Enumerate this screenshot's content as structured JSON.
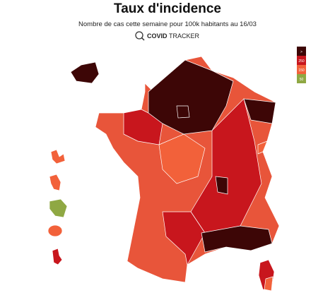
{
  "title": "Taux d'incidence",
  "subtitle": "Nombre de cas cette semaine pour 100k habitants au 16/03",
  "brand": {
    "bold": "COVID",
    "light": "TRACKER"
  },
  "legend": [
    {
      "label": ">",
      "color": "#3d0606"
    },
    {
      "label": "250",
      "color": "#c8161d"
    },
    {
      "label": "150",
      "color": "#f2613a"
    },
    {
      "label": "50",
      "color": "#8fa843"
    }
  ]
}
